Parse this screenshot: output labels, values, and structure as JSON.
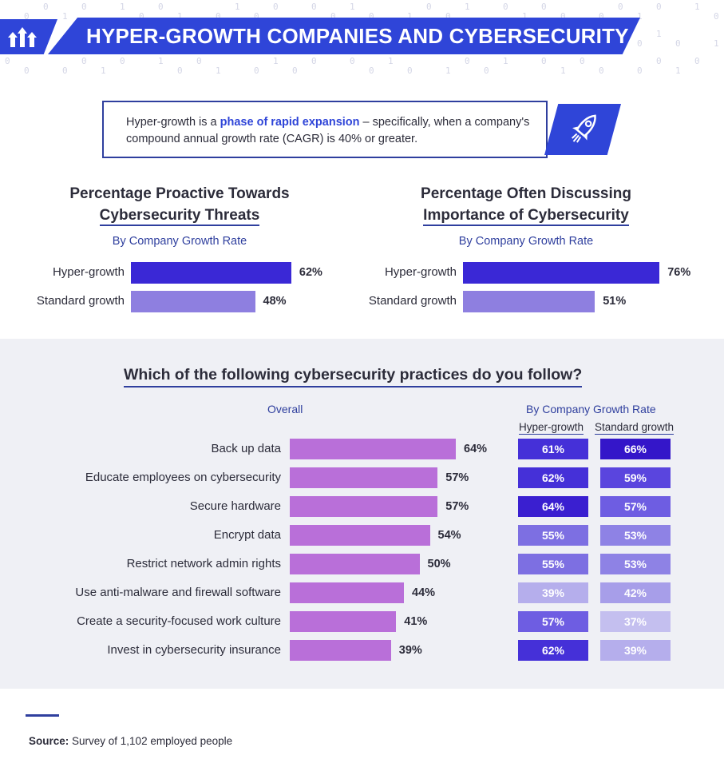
{
  "header": {
    "title": "HYPER-GROWTH COMPANIES AND CYBERSECURITY",
    "logo_icon": "growth-arrows-icon"
  },
  "definition": {
    "pre": "Hyper-growth is a ",
    "highlight": "phase of rapid expansion",
    "post": " – specifically, when a company's compound annual growth rate (CAGR) is 40% or greater.",
    "icon": "rocket-icon"
  },
  "colors": {
    "brand": "#2f45d8",
    "accent_line": "#2f3f9e",
    "hyper_bar": "#3a28d6",
    "standard_bar": "#8e7fe0",
    "overall_bar": "#b96fd9",
    "section_bg": "#eff0f5"
  },
  "chart_data": [
    {
      "type": "bar",
      "orientation": "horizontal",
      "title_line1": "Percentage Proactive Towards",
      "title_line2": "Cybersecurity Threats",
      "subtitle": "By Company Growth Rate",
      "categories": [
        "Hyper-growth",
        "Standard growth"
      ],
      "values": [
        62,
        48
      ],
      "value_labels": [
        "62%",
        "48%"
      ]
    },
    {
      "type": "bar",
      "orientation": "horizontal",
      "title_line1": "Percentage Often Discussing",
      "title_line2": "Importance of Cybersecurity",
      "subtitle": "By Company Growth Rate",
      "categories": [
        "Hyper-growth",
        "Standard growth"
      ],
      "values": [
        76,
        51
      ],
      "value_labels": [
        "76%",
        "51%"
      ]
    },
    {
      "type": "bar",
      "orientation": "horizontal",
      "title": "Which of the following cybersecurity practices do you follow?",
      "overall_label": "Overall",
      "by_rate_label": "By Company Growth Rate",
      "hyper_label": "Hyper-growth",
      "standard_label": "Standard growth",
      "categories": [
        "Back up data",
        "Educate employees on cybersecurity",
        "Secure hardware",
        "Encrypt data",
        "Restrict network admin rights",
        "Use anti-malware and firewall software",
        "Create a security-focused work culture",
        "Invest in cybersecurity insurance"
      ],
      "overall": [
        64,
        57,
        57,
        54,
        50,
        44,
        41,
        39
      ],
      "overall_labels": [
        "64%",
        "57%",
        "57%",
        "54%",
        "50%",
        "44%",
        "41%",
        "39%"
      ],
      "hyper_growth": [
        61,
        62,
        64,
        55,
        55,
        39,
        57,
        62
      ],
      "hyper_labels": [
        "61%",
        "62%",
        "64%",
        "55%",
        "55%",
        "39%",
        "57%",
        "62%"
      ],
      "standard_growth": [
        66,
        59,
        57,
        53,
        53,
        42,
        37,
        39
      ],
      "standard_labels": [
        "66%",
        "59%",
        "57%",
        "53%",
        "53%",
        "42%",
        "37%",
        "39%"
      ]
    }
  ],
  "footer": {
    "source_label": "Source:",
    "source_text": " Survey of 1,102 employed people"
  }
}
